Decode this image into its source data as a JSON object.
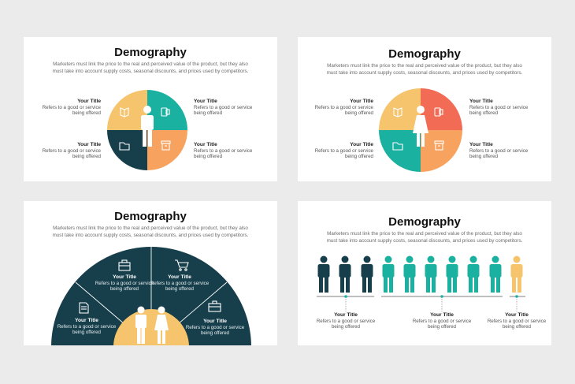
{
  "colors": {
    "yellow": "#f6c46c",
    "teal": "#1ab1a0",
    "navy": "#173f4b",
    "orange": "#f7a35f",
    "coral": "#f26b55"
  },
  "slides": [
    {
      "title": "Demography",
      "subtitle": "Marketers must link the price to the real and perceived value of the product, but they also must take into account supply costs, seasonal discounts, and prices used by competitors.",
      "items": [
        {
          "title": "Your Title",
          "text": "Refers to a good or service being offered"
        },
        {
          "title": "Your Title",
          "text": "Refers to a good or service being offered"
        },
        {
          "title": "Your Title",
          "text": "Refers to a good or service being offered"
        },
        {
          "title": "Your Title",
          "text": "Refers to a good or service being offered"
        }
      ]
    },
    {
      "title": "Demography",
      "subtitle": "Marketers must link the price to the real and perceived value of the product, but they also must take into account supply costs, seasonal discounts, and prices used by competitors.",
      "items": [
        {
          "title": "Your Title",
          "text": "Refers to a good or service being offered"
        },
        {
          "title": "Your Title",
          "text": "Refers to a good or service being offered"
        },
        {
          "title": "Your Title",
          "text": "Refers to a good or service being offered"
        },
        {
          "title": "Your Title",
          "text": "Refers to a good or service being offered"
        }
      ]
    },
    {
      "title": "Demography",
      "subtitle": "Marketers must link the price to the real and perceived value of the product, but they also must take into account supply costs, seasonal discounts, and prices used by competitors.",
      "items": [
        {
          "title": "Your Title",
          "text": "Refers to a good or service being offered"
        },
        {
          "title": "Your Title",
          "text": "Refers to a good or service being offered"
        },
        {
          "title": "Your Title",
          "text": "Refers to a good or service being offered"
        },
        {
          "title": "Your Title",
          "text": "Refers to a good or service being offered"
        }
      ]
    },
    {
      "title": "Demography",
      "subtitle": "Marketers must link the price to the real and perceived value of the product, but they also must take into account supply costs, seasonal discounts, and prices used by competitors.",
      "items": [
        {
          "title": "Your Title",
          "text": "Refers to a good or service being offered"
        },
        {
          "title": "Your Title",
          "text": "Refers to a good or service being offered"
        },
        {
          "title": "Your Title",
          "text": "Refers to a good or service being offered"
        }
      ]
    }
  ]
}
